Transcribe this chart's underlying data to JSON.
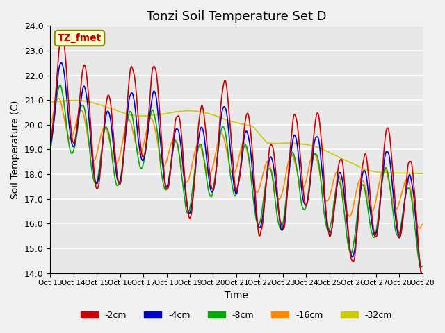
{
  "title": "Tonzi Soil Temperature Set D",
  "xlabel": "Time",
  "ylabel": "Soil Temperature (C)",
  "ylim": [
    14.0,
    24.0
  ],
  "yticks": [
    14.0,
    15.0,
    16.0,
    17.0,
    18.0,
    19.0,
    20.0,
    21.0,
    22.0,
    23.0,
    24.0
  ],
  "xtick_labels": [
    "Oct 13",
    "Oct 14",
    "Oct 15",
    "Oct 16",
    "Oct 17",
    "Oct 18",
    "Oct 19",
    "Oct 20",
    "Oct 21",
    "Oct 22",
    "Oct 23",
    "Oct 24",
    "Oct 25",
    "Oct 26",
    "Oct 27",
    "Oct 28"
  ],
  "colors": {
    "-2cm": "#cc0000",
    "-4cm": "#0000cc",
    "-8cm": "#00aa00",
    "-16cm": "#ff8800",
    "-32cm": "#cccc00"
  },
  "legend_labels": [
    "-2cm",
    "-4cm",
    "-8cm",
    "-16cm",
    "-32cm"
  ],
  "annotation_text": "TZ_fmet",
  "annotation_color": "#cc0000",
  "annotation_bg": "#ffffcc",
  "background_color": "#e8e8e8",
  "grid_color": "#ffffff",
  "title_fontsize": 13,
  "label_fontsize": 10
}
